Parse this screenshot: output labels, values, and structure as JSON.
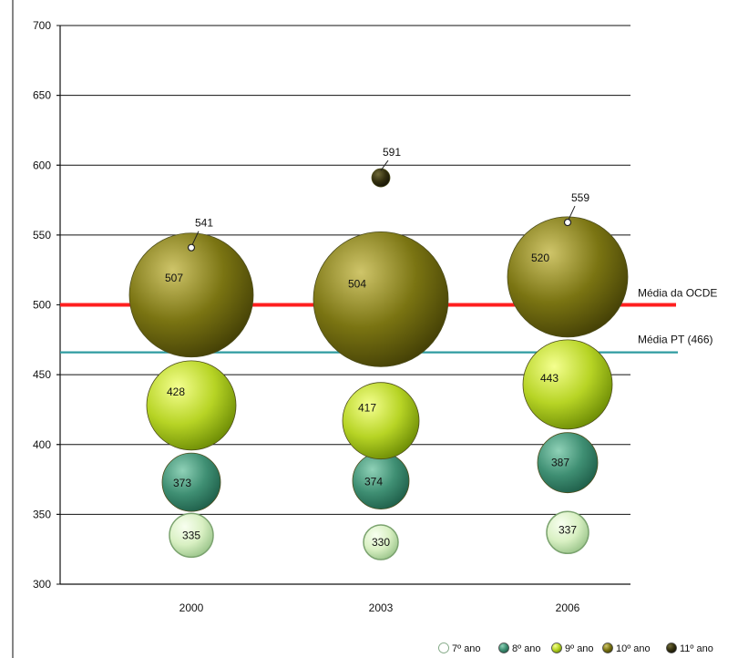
{
  "chart_data": {
    "type": "bubble",
    "categories": [
      "2000",
      "2003",
      "2006"
    ],
    "ylim": [
      300,
      700
    ],
    "yticks": [
      300,
      350,
      400,
      450,
      500,
      550,
      600,
      650,
      700
    ],
    "grid": true,
    "legend": {
      "position": "bottom-right",
      "entries": [
        {
          "label": "7º ano",
          "color": "#d8efc0"
        },
        {
          "label": "8º ano",
          "color": "#2d7b63"
        },
        {
          "label": "9º ano",
          "color": "#a6c51e"
        },
        {
          "label": "10º ano",
          "color": "#76700f"
        },
        {
          "label": "11º ano",
          "color": "#2f2b10"
        }
      ]
    },
    "series": [
      {
        "name": "7º ano",
        "color": "#d8efc0",
        "values": [
          335,
          330,
          337
        ],
        "labels": [
          "335",
          "330",
          "337"
        ],
        "size": [
          1,
          1,
          1
        ]
      },
      {
        "name": "8º ano",
        "color": "#2d7b63",
        "values": [
          373,
          374,
          387
        ],
        "labels": [
          "373",
          "374",
          "387"
        ],
        "size": [
          1,
          1,
          1
        ]
      },
      {
        "name": "9º ano",
        "color": "#a6c51e",
        "values": [
          428,
          417,
          443
        ],
        "labels": [
          "428",
          "417",
          "443"
        ],
        "size": [
          1,
          1,
          1
        ]
      },
      {
        "name": "10º ano",
        "color": "#76700f",
        "values": [
          507,
          504,
          520
        ],
        "labels": [
          "507",
          "504",
          "520"
        ],
        "size": [
          1,
          1,
          1
        ]
      },
      {
        "name": "11º ano",
        "color": "#2f2b10",
        "values": [
          null,
          591,
          null
        ],
        "labels": [
          "",
          "591",
          ""
        ],
        "size": [
          0,
          1,
          0
        ]
      }
    ],
    "outliers": [
      {
        "category": "2000",
        "value": 541,
        "label": "541"
      },
      {
        "category": "2006",
        "value": 559,
        "label": "559"
      }
    ],
    "reference_lines": [
      {
        "label": "Média da OCDE",
        "value": 500,
        "color": "#ff1f1f"
      },
      {
        "label": "Média PT (466)",
        "value": 466,
        "color": "#2f9ca0"
      }
    ]
  }
}
